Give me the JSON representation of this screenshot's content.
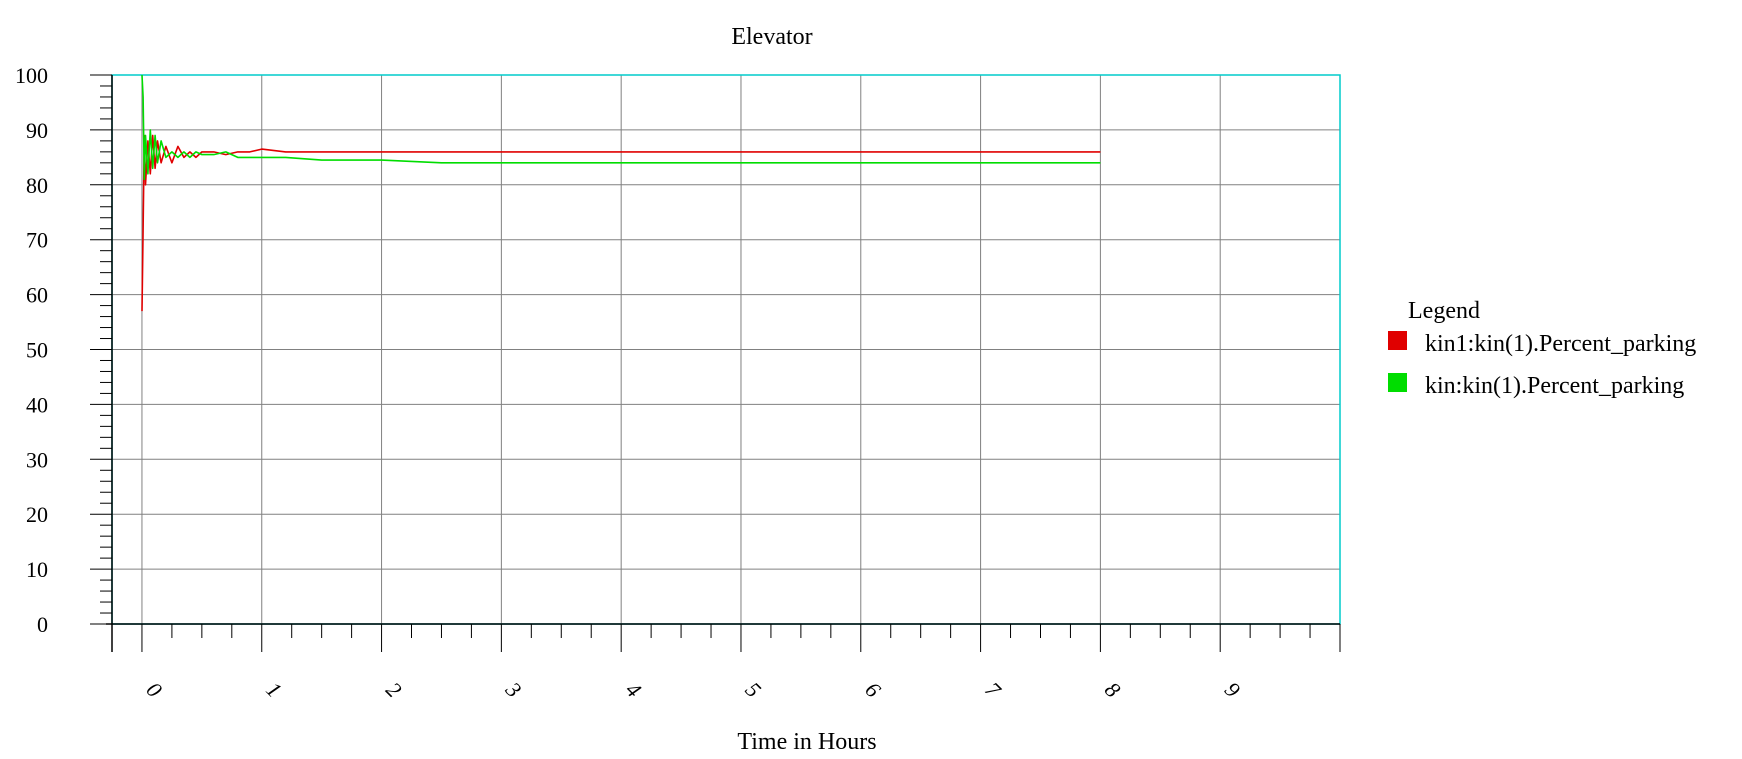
{
  "chart_data": {
    "type": "line",
    "title": "Elevator",
    "xlabel": "Time in Hours",
    "ylabel": "",
    "xlim": [
      -0.25,
      10.0
    ],
    "ylim": [
      0,
      100
    ],
    "xticks": [
      "0",
      "1",
      "2",
      "3",
      "4",
      "5",
      "6",
      "7",
      "8",
      "9"
    ],
    "yticks": [
      "0",
      "10",
      "20",
      "30",
      "40",
      "50",
      "60",
      "70",
      "80",
      "90",
      "100"
    ],
    "grid": true,
    "legend_title": "Legend",
    "legend_position": "right",
    "series": [
      {
        "name": "kin1:kin(1).Percent_parking",
        "color": "#e00000",
        "x": [
          0,
          0.01,
          0.02,
          0.03,
          0.05,
          0.07,
          0.09,
          0.11,
          0.13,
          0.16,
          0.2,
          0.25,
          0.3,
          0.35,
          0.4,
          0.45,
          0.5,
          0.6,
          0.7,
          0.8,
          0.9,
          1.0,
          1.2,
          1.5,
          1.8,
          2.0,
          2.5,
          3.0,
          3.5,
          4.0,
          4.5,
          5.0,
          5.5,
          6.0,
          6.5,
          7.0,
          7.5,
          8.0
        ],
        "y": [
          57,
          72,
          89,
          80,
          88,
          82,
          89,
          83,
          88,
          84,
          87,
          84,
          87,
          85,
          86,
          85,
          86,
          86,
          85.5,
          86,
          86,
          86.5,
          86,
          86,
          86,
          86,
          86,
          86,
          86,
          86,
          86,
          86,
          86,
          86,
          86,
          86,
          86,
          86
        ]
      },
      {
        "name": "kin:kin(1).Percent_parking",
        "color": "#00dd00",
        "x": [
          0,
          0.01,
          0.02,
          0.03,
          0.05,
          0.07,
          0.09,
          0.11,
          0.13,
          0.16,
          0.2,
          0.25,
          0.3,
          0.35,
          0.4,
          0.45,
          0.5,
          0.6,
          0.7,
          0.8,
          0.9,
          1.0,
          1.2,
          1.5,
          1.8,
          2.0,
          2.5,
          3.0,
          3.5,
          4.0,
          4.5,
          5.0,
          5.5,
          6.0,
          6.5,
          7.0,
          7.5,
          8.0
        ],
        "y": [
          100,
          96,
          81,
          89,
          82,
          90,
          83,
          89,
          84,
          88,
          85,
          86,
          85,
          86,
          85,
          86,
          85.5,
          85.5,
          86,
          85,
          85,
          85,
          85,
          84.5,
          84.5,
          84.5,
          84,
          84,
          84,
          84,
          84,
          84,
          84,
          84,
          84,
          84,
          84,
          84
        ]
      }
    ]
  }
}
